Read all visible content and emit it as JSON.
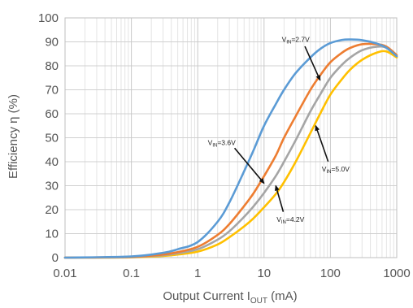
{
  "chart_data": {
    "type": "line",
    "title": "",
    "xlabel": {
      "prefix": "Output Current I",
      "sub": "OUT",
      "suffix": " (mA)"
    },
    "ylabel": "Efficiency η (%)",
    "xscale": "log",
    "xlim": [
      0.01,
      1000
    ],
    "ylim": [
      0,
      100
    ],
    "x_ticks": [
      0.01,
      0.1,
      1,
      10,
      100,
      1000
    ],
    "x_tick_labels": [
      "0.01",
      "0.1",
      "1",
      "10",
      "100",
      "1000"
    ],
    "y_ticks": [
      0,
      10,
      20,
      30,
      40,
      50,
      60,
      70,
      80,
      90,
      100
    ],
    "y_tick_labels": [
      "0",
      "10",
      "20",
      "30",
      "40",
      "50",
      "60",
      "70",
      "80",
      "90",
      "100"
    ],
    "grid": true,
    "legend": "none (inline annotations with arrows)",
    "series": [
      {
        "name": "VIN=2.7V",
        "color": "#5b9bd5",
        "x": [
          0.01,
          0.1,
          0.3,
          0.5,
          1,
          2,
          3,
          5,
          7,
          10,
          15,
          20,
          30,
          50,
          70,
          100,
          150,
          200,
          300,
          500,
          700,
          1000
        ],
        "y": [
          0,
          0.5,
          2,
          3.5,
          6.5,
          15,
          23,
          36,
          45,
          55,
          64,
          70,
          77,
          83.5,
          87,
          89.5,
          90.8,
          91,
          90.7,
          89.3,
          87.5,
          84
        ]
      },
      {
        "name": "VIN=3.6V",
        "color": "#ed7d31",
        "x": [
          0.01,
          0.1,
          0.3,
          0.5,
          1,
          2,
          3,
          5,
          7,
          10,
          15,
          20,
          30,
          50,
          70,
          100,
          150,
          200,
          300,
          500,
          700,
          1000
        ],
        "y": [
          0,
          0.3,
          1.3,
          2.3,
          4.5,
          9.5,
          14,
          21.5,
          27,
          34,
          42.5,
          50,
          59,
          70,
          76,
          81.5,
          85.5,
          87.5,
          89,
          89,
          88,
          84.5
        ]
      },
      {
        "name": "VIN=4.2V",
        "color": "#a5a5a5",
        "x": [
          0.01,
          0.1,
          0.3,
          0.5,
          1,
          2,
          3,
          5,
          7,
          10,
          15,
          20,
          30,
          50,
          70,
          100,
          150,
          200,
          300,
          500,
          700,
          1000
        ],
        "y": [
          0,
          0.2,
          1,
          1.8,
          3.5,
          7.5,
          11,
          17,
          21.5,
          27,
          34,
          40,
          49,
          61,
          68,
          75,
          80.5,
          83.5,
          86.5,
          88,
          87.5,
          84
        ]
      },
      {
        "name": "VIN=5.0V",
        "color": "#ffc000",
        "x": [
          0.01,
          0.1,
          0.3,
          0.5,
          1,
          2,
          3,
          5,
          7,
          10,
          15,
          20,
          30,
          50,
          70,
          100,
          150,
          200,
          300,
          500,
          700,
          1000
        ],
        "y": [
          0,
          0.1,
          0.7,
          1.3,
          2.5,
          5.5,
          8.5,
          13,
          16.5,
          21,
          26.5,
          31.5,
          40,
          52,
          60,
          68,
          74.5,
          78.5,
          82.5,
          85.5,
          86,
          83.5
        ]
      }
    ],
    "annotations": [
      {
        "prefix": "V",
        "sub": "IN",
        "value": "=2.7V",
        "series": "VIN=2.7V",
        "label_at": [
          30,
          90
        ],
        "arrow_to": [
          70,
          74
        ]
      },
      {
        "prefix": "V",
        "sub": "IN",
        "value": "=3.6V",
        "series": "VIN=3.6V",
        "label_at": [
          2.3,
          47
        ],
        "arrow_to": [
          10,
          31
        ]
      },
      {
        "prefix": "V",
        "sub": "IN",
        "value": "=5.0V",
        "series": "VIN=5.0V",
        "label_at": [
          120,
          36
        ],
        "arrow_to": [
          60,
          55
        ]
      },
      {
        "prefix": "V",
        "sub": "IN",
        "value": "=4.2V",
        "series": "VIN=4.2V",
        "label_at": [
          25,
          15
        ],
        "arrow_to": [
          15,
          30
        ]
      }
    ]
  }
}
